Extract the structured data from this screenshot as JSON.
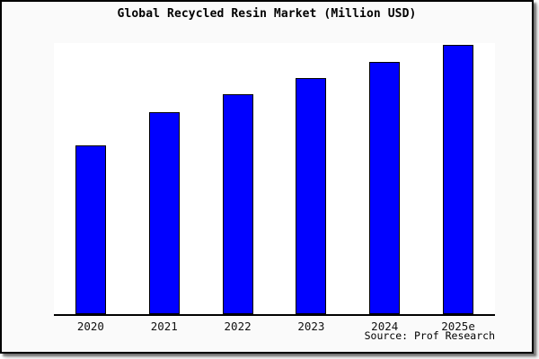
{
  "colors": {
    "bar_fill": "#0000ff",
    "bar_border": "#000000",
    "card_background": "#fafafa",
    "plot_background": "#ffffff",
    "card_border": "#000000",
    "axis": "#000000",
    "text": "#000000"
  },
  "chart_data": {
    "type": "bar",
    "title": "Global Recycled Resin Market (Million USD)",
    "categories": [
      "2020",
      "2021",
      "2022",
      "2023",
      "2024",
      "2025e"
    ],
    "values": [
      62.8,
      75.0,
      81.7,
      87.7,
      93.7,
      100
    ],
    "values_note": "No y-axis ticks or value labels are shown in the chart; values are relative bar heights indexed to 2025e = 100.",
    "xlabel": "",
    "ylabel": "",
    "ylim": [
      0,
      100.7
    ],
    "grid": false,
    "legend": false,
    "source": "Source: Prof Research"
  }
}
